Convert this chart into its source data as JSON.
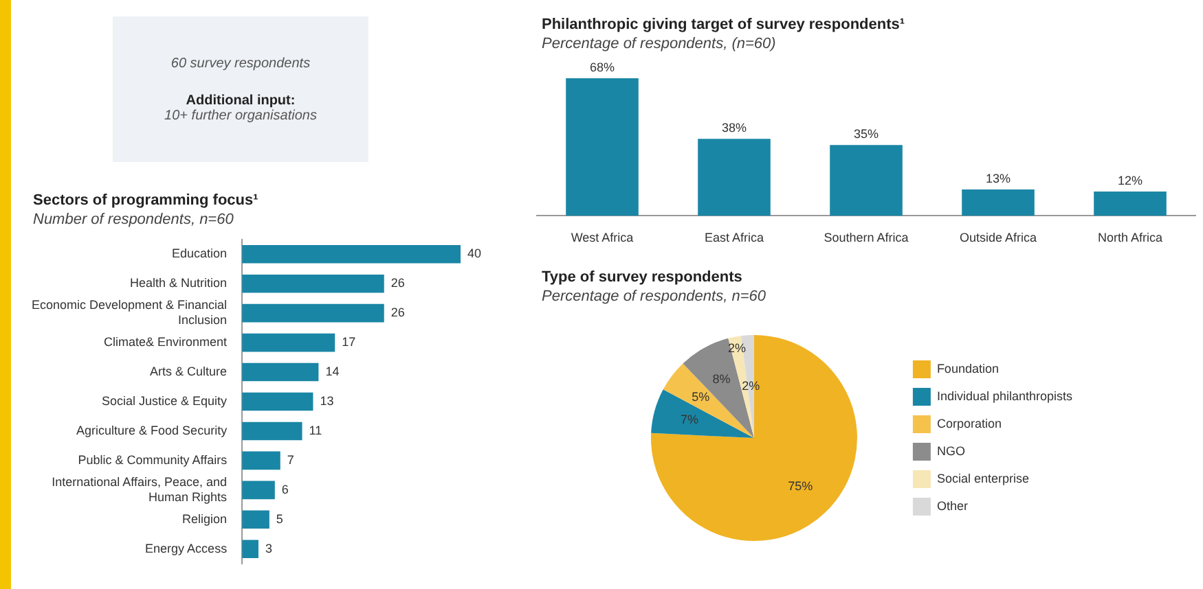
{
  "chart_data": [
    {
      "type": "other",
      "annotations": [
        "60 survey respondents",
        "Additional input:",
        "10+ further organisations"
      ]
    },
    {
      "type": "bar",
      "orientation": "horizontal",
      "title": "Sectors of programming focus¹",
      "subtitle": "Number of respondents, n=60",
      "categories": [
        "Education",
        "Health & Nutrition",
        "Economic Development & Financial Inclusion",
        "Climate& Environment",
        "Arts & Culture",
        "Social Justice & Equity",
        "Agriculture & Food Security",
        "Public & Community Affairs",
        "International Affairs, Peace, and Human Rights",
        "Religion",
        "Energy Access"
      ],
      "values": [
        40,
        26,
        26,
        17,
        14,
        13,
        11,
        7,
        6,
        5,
        3
      ],
      "color": "#1a86a5",
      "data_labels": true
    },
    {
      "type": "bar",
      "title": "Philanthropic giving target of survey respondents¹",
      "subtitle": "Percentage of respondents, (n=60)",
      "categories": [
        "West Africa",
        "East Africa",
        "Southern Africa",
        "Outside Africa",
        "North Africa"
      ],
      "values": [
        68,
        38,
        35,
        13,
        12
      ],
      "value_labels": [
        "68%",
        "38%",
        "35%",
        "13%",
        "12%"
      ],
      "color": "#1a86a5"
    },
    {
      "type": "pie",
      "title": "Type of survey respondents",
      "subtitle": "Percentage of respondents, n=60",
      "categories": [
        "Foundation",
        "Individual philanthropists",
        "Corporation",
        "NGO",
        "Social enterprise",
        "Other"
      ],
      "values": [
        75,
        7,
        5,
        8,
        2,
        2
      ],
      "value_labels": [
        "75%",
        "7%",
        "5%",
        "8%",
        "2%",
        "2%"
      ],
      "colors": [
        "#f0b323",
        "#1a86a5",
        "#f5c24c",
        "#8c8c8c",
        "#f7e7b6",
        "#d9d9d9"
      ],
      "legend": "right"
    }
  ]
}
